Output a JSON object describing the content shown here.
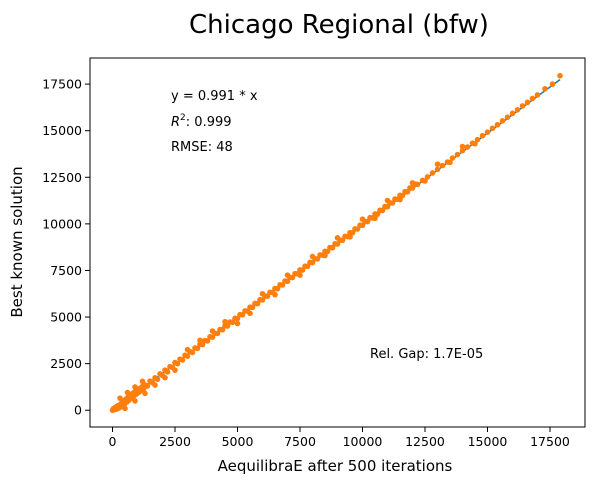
{
  "chart_data": {
    "type": "scatter",
    "title": "Chicago Regional (bfw)",
    "xlabel": "AequilibraE after 500 iterations",
    "ylabel": "Best known solution",
    "xlim": [
      -900,
      18900
    ],
    "ylim": [
      -900,
      18900
    ],
    "xticks": [
      0,
      2500,
      5000,
      7500,
      10000,
      12500,
      15000,
      17500
    ],
    "yticks": [
      0,
      2500,
      5000,
      7500,
      10000,
      12500,
      15000,
      17500
    ],
    "grid": false,
    "colors": {
      "scatter": "#ff7f0e",
      "fit_line": "#1f77b4"
    },
    "fit": {
      "slope": 0.991,
      "x_range": [
        0,
        17900
      ]
    },
    "annotations": {
      "equation": "y = 0.991 * x",
      "r2_label": "R",
      "r2_value": ":  0.999",
      "rmse": "RMSE: 48",
      "rel_gap": "Rel. Gap: 1.7E-05"
    },
    "series": [
      {
        "values": [
          [
            0,
            0
          ],
          [
            40,
            90
          ],
          [
            80,
            30
          ],
          [
            120,
            160
          ],
          [
            160,
            60
          ],
          [
            200,
            240
          ],
          [
            250,
            110
          ],
          [
            300,
            300
          ],
          [
            340,
            180
          ],
          [
            380,
            420
          ],
          [
            420,
            280
          ],
          [
            460,
            520
          ],
          [
            500,
            360
          ],
          [
            540,
            600
          ],
          [
            580,
            450
          ],
          [
            620,
            700
          ],
          [
            660,
            540
          ],
          [
            700,
            800
          ],
          [
            750,
            650
          ],
          [
            800,
            900
          ],
          [
            850,
            760
          ],
          [
            900,
            1000
          ],
          [
            950,
            860
          ],
          [
            1000,
            1080
          ],
          [
            1050,
            960
          ],
          [
            1100,
            1180
          ],
          [
            1150,
            1060
          ],
          [
            1200,
            1280
          ],
          [
            1250,
            1160
          ],
          [
            1300,
            1360
          ],
          [
            1400,
            1300
          ],
          [
            1500,
            1560
          ],
          [
            1600,
            1480
          ],
          [
            1700,
            1740
          ],
          [
            1800,
            1660
          ],
          [
            1900,
            1950
          ],
          [
            2000,
            1860
          ],
          [
            2100,
            2150
          ],
          [
            2200,
            2060
          ],
          [
            2300,
            2340
          ],
          [
            2400,
            2300
          ],
          [
            2500,
            2560
          ],
          [
            2600,
            2500
          ],
          [
            2700,
            2740
          ],
          [
            2800,
            2700
          ],
          [
            2900,
            2950
          ],
          [
            3000,
            2900
          ],
          [
            3100,
            3140
          ],
          [
            3200,
            3100
          ],
          [
            3300,
            3340
          ],
          [
            3400,
            3320
          ],
          [
            3500,
            3540
          ],
          [
            3600,
            3520
          ],
          [
            3700,
            3740
          ],
          [
            3800,
            3720
          ],
          [
            3900,
            3940
          ],
          [
            4000,
            3920
          ],
          [
            4100,
            4130
          ],
          [
            4200,
            4120
          ],
          [
            4300,
            4330
          ],
          [
            4400,
            4320
          ],
          [
            4500,
            4530
          ],
          [
            4600,
            4520
          ],
          [
            4700,
            4730
          ],
          [
            4800,
            4720
          ],
          [
            4900,
            4930
          ],
          [
            5000,
            4920
          ],
          [
            5100,
            5130
          ],
          [
            5200,
            5120
          ],
          [
            5300,
            5330
          ],
          [
            5400,
            5320
          ],
          [
            5500,
            5530
          ],
          [
            5600,
            5520
          ],
          [
            5700,
            5730
          ],
          [
            5800,
            5720
          ],
          [
            5900,
            5930
          ],
          [
            6000,
            5920
          ],
          [
            6100,
            6130
          ],
          [
            6200,
            6120
          ],
          [
            6300,
            6330
          ],
          [
            6400,
            6320
          ],
          [
            6500,
            6530
          ],
          [
            6600,
            6520
          ],
          [
            6700,
            6730
          ],
          [
            6800,
            6720
          ],
          [
            6900,
            6930
          ],
          [
            7000,
            6920
          ],
          [
            7100,
            7130
          ],
          [
            7200,
            7120
          ],
          [
            7300,
            7330
          ],
          [
            7400,
            7320
          ],
          [
            7500,
            7530
          ],
          [
            7600,
            7520
          ],
          [
            7700,
            7730
          ],
          [
            7800,
            7720
          ],
          [
            7900,
            7930
          ],
          [
            8000,
            7920
          ],
          [
            8100,
            8130
          ],
          [
            8200,
            8120
          ],
          [
            8300,
            8330
          ],
          [
            8400,
            8320
          ],
          [
            8500,
            8530
          ],
          [
            8600,
            8520
          ],
          [
            8700,
            8730
          ],
          [
            8800,
            8720
          ],
          [
            8900,
            8930
          ],
          [
            9000,
            8920
          ],
          [
            9100,
            9130
          ],
          [
            9200,
            9120
          ],
          [
            9300,
            9330
          ],
          [
            9400,
            9320
          ],
          [
            9500,
            9530
          ],
          [
            9600,
            9520
          ],
          [
            9700,
            9730
          ],
          [
            9800,
            9720
          ],
          [
            9900,
            9930
          ],
          [
            10000,
            9920
          ],
          [
            10100,
            10130
          ],
          [
            10200,
            10120
          ],
          [
            10300,
            10330
          ],
          [
            10400,
            10320
          ],
          [
            10500,
            10530
          ],
          [
            10600,
            10520
          ],
          [
            10700,
            10730
          ],
          [
            10800,
            10720
          ],
          [
            10900,
            10930
          ],
          [
            11000,
            10920
          ],
          [
            11100,
            11130
          ],
          [
            11200,
            11120
          ],
          [
            11300,
            11330
          ],
          [
            11400,
            11320
          ],
          [
            11500,
            11530
          ],
          [
            11600,
            11520
          ],
          [
            11700,
            11730
          ],
          [
            11800,
            11720
          ],
          [
            11900,
            11930
          ],
          [
            12000,
            11920
          ],
          [
            12100,
            12130
          ],
          [
            12200,
            12120
          ],
          [
            12400,
            12330
          ],
          [
            12600,
            12520
          ],
          [
            12800,
            12730
          ],
          [
            13000,
            12920
          ],
          [
            13200,
            13130
          ],
          [
            13400,
            13320
          ],
          [
            13600,
            13530
          ],
          [
            13800,
            13720
          ],
          [
            14000,
            13930
          ],
          [
            14200,
            14120
          ],
          [
            14400,
            14330
          ],
          [
            14600,
            14520
          ],
          [
            14800,
            14730
          ],
          [
            15000,
            14920
          ],
          [
            15200,
            15130
          ],
          [
            15400,
            15320
          ],
          [
            15600,
            15530
          ],
          [
            15800,
            15720
          ],
          [
            16000,
            15930
          ],
          [
            16200,
            16120
          ],
          [
            16400,
            16330
          ],
          [
            16600,
            16520
          ],
          [
            16800,
            16730
          ],
          [
            17000,
            16920
          ],
          [
            17300,
            17250
          ],
          [
            17600,
            17500
          ],
          [
            17900,
            17950
          ],
          [
            300,
            650
          ],
          [
            600,
            950
          ],
          [
            900,
            1250
          ],
          [
            1200,
            1550
          ],
          [
            500,
            100
          ],
          [
            900,
            500
          ],
          [
            1300,
            900
          ],
          [
            1700,
            1350
          ],
          [
            2100,
            1750
          ],
          [
            2500,
            2150
          ],
          [
            3000,
            3250
          ],
          [
            3500,
            3750
          ],
          [
            4000,
            4250
          ],
          [
            4500,
            4750
          ],
          [
            5000,
            4650
          ],
          [
            5500,
            5200
          ],
          [
            6000,
            6250
          ],
          [
            6500,
            6200
          ],
          [
            7000,
            7250
          ],
          [
            7500,
            7250
          ],
          [
            8000,
            8250
          ],
          [
            8500,
            8300
          ],
          [
            9000,
            9250
          ],
          [
            9500,
            9300
          ],
          [
            10000,
            10250
          ],
          [
            10500,
            10300
          ],
          [
            11000,
            11250
          ],
          [
            11500,
            11300
          ],
          [
            12000,
            12200
          ],
          [
            12500,
            12300
          ],
          [
            13000,
            13200
          ],
          [
            13500,
            13300
          ],
          [
            14000,
            14150
          ],
          [
            14500,
            14300
          ]
        ]
      }
    ]
  }
}
